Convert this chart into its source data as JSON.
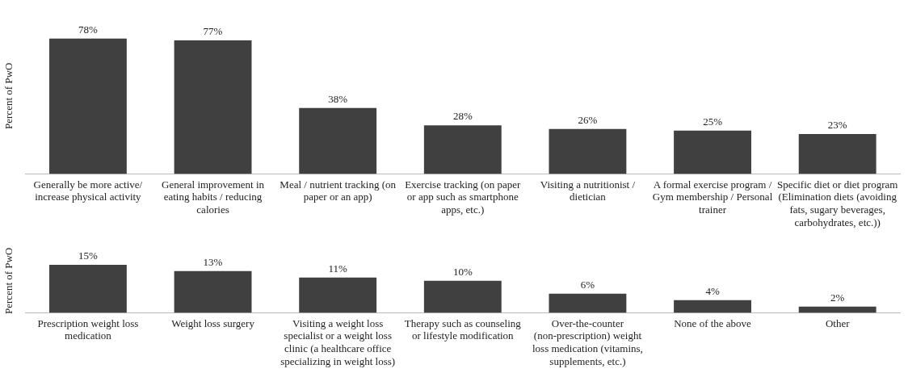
{
  "chart_data": [
    {
      "type": "bar",
      "ylabel": "Percent of PwO",
      "categories": [
        "Generally be more active/ increase physical activity",
        "General improvement in eating habits / reducing calories",
        "Meal / nutrient tracking (on paper or an app)",
        "Exercise tracking (on paper or app such as smartphone apps, etc.)",
        "Visiting a nutritionist / dietician",
        "A formal exercise program / Gym membership / Personal trainer",
        "Specific diet or diet program (Elimination diets (avoiding fats, sugary beverages, carbohydrates, etc.))"
      ],
      "values": [
        78,
        77,
        38,
        28,
        26,
        25,
        23
      ],
      "color": "#404040",
      "value_labels": [
        "78%",
        "77%",
        "38%",
        "28%",
        "26%",
        "25%",
        "23%"
      ],
      "grid": false,
      "legend": false,
      "tick_labels": "x"
    },
    {
      "type": "bar",
      "ylabel": "Percent of PwO",
      "categories": [
        "Prescription weight loss medication",
        "Weight loss surgery",
        "Visiting a weight loss specialist or a weight loss clinic (a healthcare office specializing in weight loss)",
        "Therapy such as counseling or lifestyle modification",
        "Over-the-counter (non-prescription) weight loss medication (vitamins, supplements, etc.)",
        "None of the above",
        "Other"
      ],
      "values": [
        15,
        13,
        11,
        10,
        6,
        4,
        2
      ],
      "color": "#404040",
      "value_labels": [
        "15%",
        "13%",
        "11%",
        "10%",
        "6%",
        "4%",
        "2%"
      ],
      "grid": false,
      "legend": false,
      "tick_labels": "x"
    }
  ]
}
